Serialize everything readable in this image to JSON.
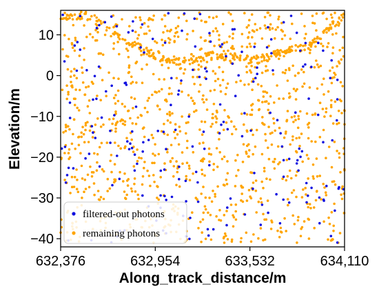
{
  "chart_data": {
    "type": "scatter",
    "title": "",
    "xlabel": "Along_track_distance/m",
    "ylabel": "Elevation/m",
    "xlim": [
      632376,
      634110
    ],
    "ylim": [
      -42,
      16
    ],
    "x_ticks": [
      632376,
      632954,
      633532,
      634110
    ],
    "x_tick_labels": [
      "632,376",
      "632,954",
      "633,532",
      "634,110"
    ],
    "y_ticks": [
      10,
      0,
      -10,
      -20,
      -30,
      -40
    ],
    "y_tick_labels": [
      "10",
      "0",
      "−10",
      "−20",
      "−30",
      "−40"
    ],
    "grid": false,
    "legend_position": "bottom-left",
    "series": [
      {
        "name": "filtered-out photons",
        "color": "#1010e0",
        "generator": {
          "count": 210,
          "seed": 7,
          "y_range": [
            -41,
            15.5
          ]
        }
      },
      {
        "name": "remaining photons",
        "color": "#ffa500",
        "surface_profile": {
          "x": [
            632376,
            632520,
            632620,
            632700,
            632850,
            633000,
            633150,
            633300,
            633450,
            633600,
            633760,
            633900,
            634000,
            634110
          ],
          "y": [
            14.5,
            14.8,
            13.5,
            10.5,
            7.0,
            4.0,
            3.5,
            5.0,
            4.2,
            3.8,
            6.5,
            7.0,
            11.5,
            14.5
          ]
        },
        "generator": {
          "surface_count": 260,
          "noise_count": 1150,
          "seed": 11,
          "y_range": [
            -41,
            15.5
          ]
        }
      }
    ]
  }
}
